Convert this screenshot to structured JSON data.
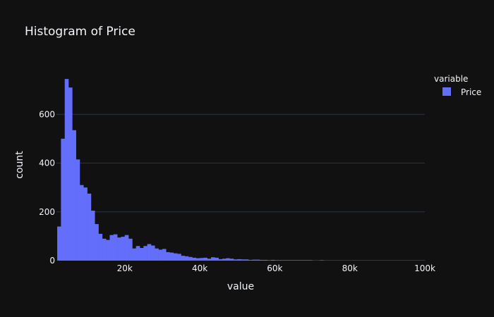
{
  "chart_data": {
    "type": "bar",
    "title": "Histogram of Price",
    "xlabel": "value",
    "ylabel": "count",
    "xlim": [
      1800,
      100000
    ],
    "ylim": [
      0,
      780
    ],
    "bin_width": 1000,
    "bin_start": 2000,
    "x_ticks": [
      {
        "value": 20000,
        "label": "20k"
      },
      {
        "value": 40000,
        "label": "40k"
      },
      {
        "value": 60000,
        "label": "60k"
      },
      {
        "value": 80000,
        "label": "80k"
      },
      {
        "value": 100000,
        "label": "100k"
      }
    ],
    "y_ticks": [
      {
        "value": 0,
        "label": "0"
      },
      {
        "value": 200,
        "label": "200"
      },
      {
        "value": 400,
        "label": "400"
      },
      {
        "value": 600,
        "label": "600"
      }
    ],
    "legend": {
      "title": "variable",
      "placement": "right",
      "entries": [
        {
          "name": "Price",
          "color": "#636efa"
        }
      ]
    },
    "series": [
      {
        "name": "Price",
        "color": "#636efa",
        "values": [
          140,
          500,
          745,
          710,
          535,
          415,
          310,
          300,
          275,
          205,
          150,
          110,
          90,
          85,
          105,
          108,
          95,
          98,
          105,
          90,
          50,
          60,
          52,
          60,
          68,
          62,
          50,
          45,
          48,
          35,
          33,
          30,
          28,
          20,
          18,
          15,
          12,
          10,
          11,
          12,
          8,
          14,
          12,
          6,
          8,
          10,
          8,
          5,
          6,
          5,
          5,
          3,
          4,
          4,
          3,
          3,
          2,
          3,
          2,
          2,
          2,
          2,
          2,
          2,
          2,
          2,
          2,
          2,
          1,
          1,
          2,
          1,
          1,
          1,
          1,
          1,
          1,
          1,
          1,
          1,
          1,
          1,
          1,
          1,
          1,
          1,
          1,
          1,
          1,
          1,
          1,
          1,
          1,
          1,
          1,
          1,
          1,
          1
        ]
      }
    ]
  }
}
